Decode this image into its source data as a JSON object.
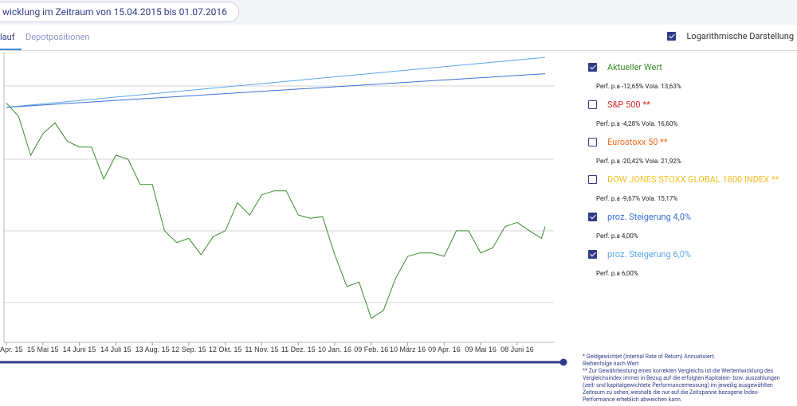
{
  "header": {
    "title": "wicklung im Zeitraum von 15.04.2015 bis 01.07.2016"
  },
  "tabs": [
    {
      "label": "lauf"
    },
    {
      "label": "Depotpositionen"
    }
  ],
  "log_option_label": "Logarithmische Darstellung",
  "chart_data": {
    "type": "line",
    "log_scale": true,
    "xlim": [
      "2015-04-15",
      "2016-07-01"
    ],
    "ylim": [
      71.6,
      108.2
    ],
    "xticks": [
      {
        "value": "2015-04-15",
        "label": "Apr. 15"
      },
      {
        "value": "2015-05-15",
        "label": "15 Mai 15"
      },
      {
        "value": "2015-06-14",
        "label": "14 Juni 15"
      },
      {
        "value": "2015-07-14",
        "label": "14 Juli 15"
      },
      {
        "value": "2015-08-13",
        "label": "13 Aug. 15"
      },
      {
        "value": "2015-09-12",
        "label": "12 Sep. 15"
      },
      {
        "value": "2015-10-12",
        "label": "12 Okt. 15"
      },
      {
        "value": "2015-11-11",
        "label": "11 Nov. 15"
      },
      {
        "value": "2015-12-11",
        "label": "11 Dez. 15"
      },
      {
        "value": "2016-01-10",
        "label": "10 Jan. 16"
      },
      {
        "value": "2016-02-09",
        "label": "09 Feb. 16"
      },
      {
        "value": "2016-03-10",
        "label": "10 März 16"
      },
      {
        "value": "2016-04-09",
        "label": "09 Apr. 16"
      },
      {
        "value": "2016-05-09",
        "label": "09 Mai 16"
      },
      {
        "value": "2016-06-08",
        "label": "08 Juni 16"
      }
    ],
    "series": [
      {
        "name": "Aktueller Wert",
        "color": "#3a8a2e",
        "visible": true,
        "perf": "Perf. p.a -12,65% Vola. 13,63%",
        "x": [
          "2015-04-15",
          "2015-04-25",
          "2015-05-05",
          "2015-05-15",
          "2015-05-25",
          "2015-06-04",
          "2015-06-14",
          "2015-06-24",
          "2015-07-04",
          "2015-07-14",
          "2015-07-24",
          "2015-08-03",
          "2015-08-13",
          "2015-08-23",
          "2015-09-02",
          "2015-09-12",
          "2015-09-22",
          "2015-10-02",
          "2015-10-12",
          "2015-10-22",
          "2015-11-01",
          "2015-11-11",
          "2015-11-21",
          "2015-12-01",
          "2015-12-11",
          "2015-12-21",
          "2015-12-31",
          "2016-01-10",
          "2016-01-20",
          "2016-01-30",
          "2016-02-09",
          "2016-02-19",
          "2016-02-29",
          "2016-03-10",
          "2016-03-20",
          "2016-03-30",
          "2016-04-09",
          "2016-04-19",
          "2016-04-29",
          "2016-05-09",
          "2016-05-19",
          "2016-05-29",
          "2016-06-08",
          "2016-06-18",
          "2016-06-28",
          "2016-07-01"
        ],
        "values": [
          100.6,
          98.7,
          93.4,
          96.3,
          97.8,
          95.3,
          94.5,
          94.5,
          90.3,
          93.4,
          92.9,
          89.6,
          89.6,
          83.9,
          82.5,
          83.0,
          81.1,
          83.2,
          83.9,
          87.3,
          85.8,
          88.3,
          88.8,
          88.8,
          85.8,
          85.4,
          85.6,
          81.1,
          77.5,
          78.0,
          74.1,
          74.9,
          78.4,
          80.9,
          81.3,
          81.3,
          80.9,
          83.9,
          83.9,
          81.3,
          81.9,
          84.4,
          84.9,
          83.9,
          83.0,
          84.4
        ]
      },
      {
        "name": "S&P 500 **",
        "color": "#e02a2a",
        "visible": false,
        "perf": "Perf. p.a -4,28% Vola. 16,60%",
        "x": [],
        "values": []
      },
      {
        "name": "Eurostoxx 50 **",
        "color": "#f06a1e",
        "visible": false,
        "perf": "Perf. p.a -20,42% Vola. 21,92%",
        "x": [],
        "values": []
      },
      {
        "name": "DOW JONES STOXX GLOBAL 1800 INDEX **",
        "color": "#f2c021",
        "visible": false,
        "perf": "Perf. p.a -9,67% Vola. 15,17%",
        "x": [],
        "values": []
      },
      {
        "name": "proz. Steigerung 4,0%",
        "color": "#3b6fd6",
        "visible": true,
        "perf": "Perf. p.a 4,00%",
        "x": [
          "2015-04-15",
          "2016-07-01"
        ],
        "values": [
          100,
          104.87
        ]
      },
      {
        "name": "proz. Steigerung 6,0%",
        "color": "#5aa6e8",
        "visible": true,
        "perf": "Perf. p.a 6,00%",
        "x": [
          "2015-04-15",
          "2016-07-01"
        ],
        "values": [
          100,
          107.33
        ]
      }
    ]
  },
  "notes": [
    "* Geldgewichtet (Internal Rate of Return) Annualisiert.",
    "Reihenfolge nach Wert",
    "** Zur Gewährleistung eines korrekten Vergleichs ist die Wertentwicklung des",
    "Vergleichsindex immer in Bezug auf die erfolgten Kapitalein- bzw. auszahlungen",
    "(zeit- und kapitalgewichtete Performancemessung) im jeweilig ausgewählten",
    "Zeitraum zu sehen, weshalb die nur auf die Zeitspanne bezogene Index-",
    "Performance erheblich abweichen kann."
  ]
}
